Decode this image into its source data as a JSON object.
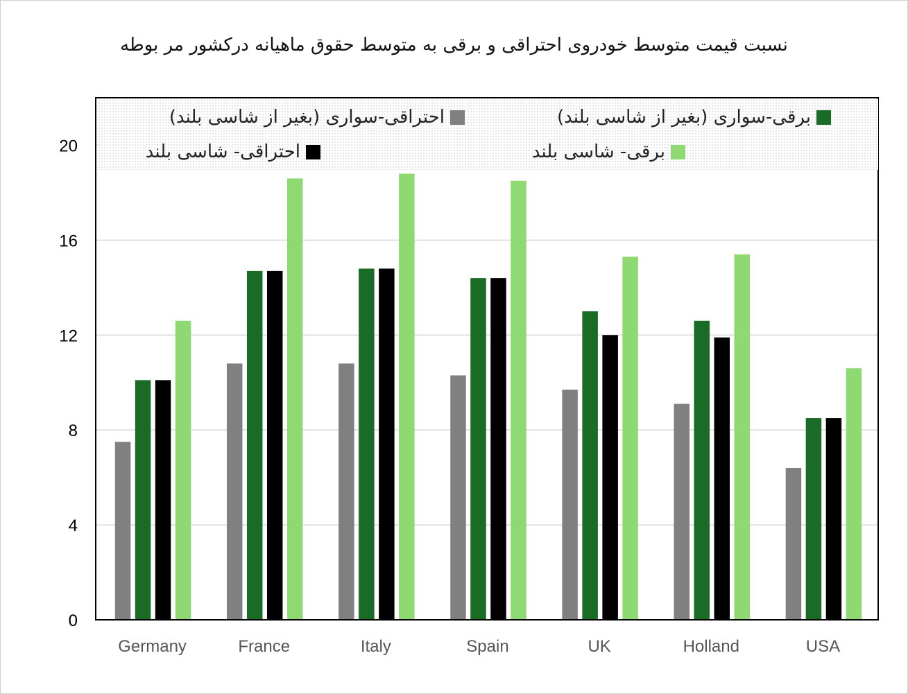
{
  "title": "نسبت قیمت متوسط خودروی احتراقی و برقی به متوسط حقوق ماهیانه درکشور مر بوطه",
  "colors": {
    "grid": "#d9d9d9",
    "axis": "#000000"
  },
  "legend": {
    "items": [
      {
        "label": "احتراقی-سواری (بغیر از شاسی بلند)",
        "color": "#808080"
      },
      {
        "label": "برقی-سواری (بغیر از شاسی بلند)",
        "color": "#1a6b26"
      },
      {
        "label": "احتراقی- شاسی بلند",
        "color": "#000000"
      },
      {
        "label": "برقی- شاسی بلند",
        "color": "#8fd973"
      }
    ]
  },
  "chart_data": {
    "type": "bar",
    "categories": [
      "Germany",
      "France",
      "Italy",
      "Spain",
      "UK",
      "Holland",
      "USA"
    ],
    "series": [
      {
        "name": "احتراقی-سواری (بغیر از شاسی بلند)",
        "color": "#808080",
        "values": [
          7.5,
          10.8,
          10.8,
          10.3,
          9.7,
          9.1,
          6.4
        ]
      },
      {
        "name": "برقی-سواری (بغیر از شاسی بلند)",
        "color": "#1a6b26",
        "values": [
          10.1,
          14.7,
          14.8,
          14.4,
          13.0,
          12.6,
          8.5
        ]
      },
      {
        "name": "احتراقی- شاسی بلند",
        "color": "#000000",
        "values": [
          10.1,
          14.7,
          14.8,
          14.4,
          12.0,
          11.9,
          8.5
        ]
      },
      {
        "name": "برقی- شاسی بلند",
        "color": "#8fd973",
        "values": [
          12.6,
          18.6,
          18.8,
          18.5,
          15.3,
          15.4,
          10.6
        ]
      }
    ],
    "yticks": [
      0,
      4,
      8,
      12,
      16,
      20
    ],
    "ylim": [
      0,
      22
    ],
    "grid": true,
    "legend_position": "top"
  }
}
